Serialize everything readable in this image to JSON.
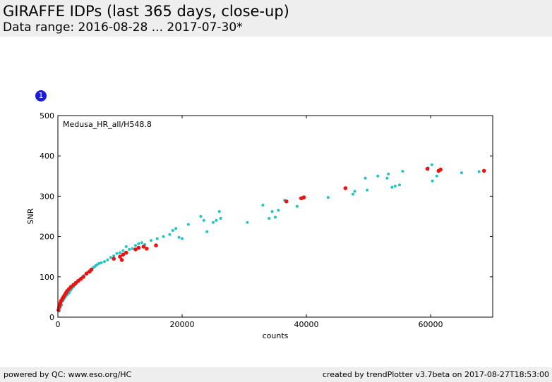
{
  "header": {
    "title": "GIRAFFE IDPs (last 365 days, close-up)",
    "subtitle": "Data range: 2016-08-28 ... 2017-07-30*"
  },
  "badge": {
    "label": "1"
  },
  "footer": {
    "left": "powered by QC: www.eso.org/HC",
    "right": "created by trendPlotter v3.7beta on 2017-08-27T18:53:00"
  },
  "chart_data": {
    "type": "scatter",
    "title": "",
    "annotation": "Medusa_HR_all/H548.8",
    "xlabel": "counts",
    "ylabel": "SNR",
    "xlim": [
      0,
      70000
    ],
    "ylim": [
      0,
      500
    ],
    "xticks": [
      0,
      20000,
      40000,
      60000
    ],
    "yticks": [
      0,
      100,
      200,
      300,
      400,
      500
    ],
    "colors": {
      "cyan": "#22c3c3",
      "red": "#ee1111"
    },
    "series": [
      {
        "color": "#22c3c3",
        "points": [
          [
            200,
            15
          ],
          [
            400,
            25
          ],
          [
            600,
            30
          ],
          [
            800,
            40
          ],
          [
            1000,
            45
          ],
          [
            1200,
            50
          ],
          [
            1500,
            55
          ],
          [
            1800,
            60
          ],
          [
            2000,
            65
          ],
          [
            2200,
            70
          ],
          [
            2500,
            75
          ],
          [
            2800,
            80
          ],
          [
            3000,
            85
          ],
          [
            3200,
            90
          ],
          [
            3500,
            93
          ],
          [
            3800,
            97
          ],
          [
            4000,
            100
          ],
          [
            4200,
            103
          ],
          [
            4500,
            107
          ],
          [
            4700,
            110
          ],
          [
            4900,
            112
          ],
          [
            5100,
            115
          ],
          [
            5300,
            117
          ],
          [
            5500,
            120
          ],
          [
            5700,
            123
          ],
          [
            5900,
            125
          ],
          [
            6100,
            128
          ],
          [
            6300,
            130
          ],
          [
            6600,
            133
          ],
          [
            7000,
            135
          ],
          [
            7500,
            138
          ],
          [
            8000,
            142
          ],
          [
            8500,
            148
          ],
          [
            9000,
            152
          ],
          [
            9500,
            158
          ],
          [
            10000,
            160
          ],
          [
            10500,
            165
          ],
          [
            11000,
            175
          ],
          [
            11500,
            168
          ],
          [
            12000,
            170
          ],
          [
            12500,
            178
          ],
          [
            13000,
            182
          ],
          [
            13500,
            185
          ],
          [
            14000,
            180
          ],
          [
            15000,
            190
          ],
          [
            16000,
            195
          ],
          [
            17000,
            200
          ],
          [
            18000,
            205
          ],
          [
            18500,
            215
          ],
          [
            19000,
            220
          ],
          [
            19500,
            198
          ],
          [
            20000,
            195
          ],
          [
            21000,
            230
          ],
          [
            23000,
            250
          ],
          [
            23500,
            240
          ],
          [
            24000,
            212
          ],
          [
            25000,
            235
          ],
          [
            25500,
            240
          ],
          [
            26000,
            262
          ],
          [
            26200,
            245
          ],
          [
            30500,
            235
          ],
          [
            33000,
            278
          ],
          [
            34000,
            245
          ],
          [
            34500,
            262
          ],
          [
            35000,
            248
          ],
          [
            35500,
            265
          ],
          [
            36500,
            290
          ],
          [
            38500,
            275
          ],
          [
            39000,
            295
          ],
          [
            43500,
            297
          ],
          [
            47500,
            305
          ],
          [
            47800,
            312
          ],
          [
            49500,
            345
          ],
          [
            49800,
            315
          ],
          [
            51500,
            350
          ],
          [
            53000,
            345
          ],
          [
            53200,
            355
          ],
          [
            53800,
            322
          ],
          [
            54300,
            325
          ],
          [
            55000,
            328
          ],
          [
            55500,
            362
          ],
          [
            59600,
            370
          ],
          [
            60200,
            378
          ],
          [
            60300,
            338
          ],
          [
            61000,
            350
          ],
          [
            65000,
            358
          ],
          [
            67800,
            361
          ]
        ]
      },
      {
        "color": "#ee1111",
        "points": [
          [
            100,
            18
          ],
          [
            200,
            25
          ],
          [
            300,
            30
          ],
          [
            400,
            35
          ],
          [
            500,
            40
          ],
          [
            700,
            45
          ],
          [
            900,
            50
          ],
          [
            1100,
            55
          ],
          [
            1300,
            60
          ],
          [
            1500,
            65
          ],
          [
            1800,
            70
          ],
          [
            2100,
            75
          ],
          [
            2500,
            80
          ],
          [
            2900,
            85
          ],
          [
            3300,
            90
          ],
          [
            3700,
            95
          ],
          [
            4100,
            100
          ],
          [
            4600,
            108
          ],
          [
            5100,
            113
          ],
          [
            5400,
            118
          ],
          [
            9000,
            145
          ],
          [
            10000,
            150
          ],
          [
            10300,
            142
          ],
          [
            10500,
            155
          ],
          [
            11000,
            160
          ],
          [
            12500,
            168
          ],
          [
            13000,
            172
          ],
          [
            13800,
            175
          ],
          [
            14300,
            170
          ],
          [
            15800,
            178
          ],
          [
            36800,
            287
          ],
          [
            39200,
            295
          ],
          [
            39600,
            297
          ],
          [
            46300,
            320
          ],
          [
            59500,
            368
          ],
          [
            61300,
            363
          ],
          [
            61600,
            366
          ],
          [
            68600,
            363
          ]
        ]
      }
    ]
  }
}
